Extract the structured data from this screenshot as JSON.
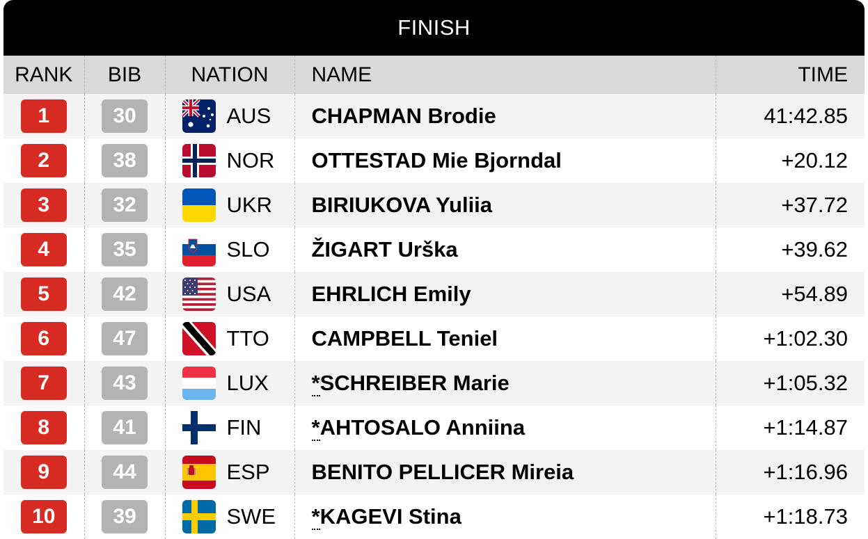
{
  "title": "FINISH",
  "headers": {
    "rank": "RANK",
    "bib": "BIB",
    "nation": "NATION",
    "name": "NAME",
    "time": "TIME"
  },
  "colors": {
    "rank_badge": "#d72b23",
    "bib_badge": "#b3b3b3",
    "header_bg": "#d9d9d9",
    "title_bg": "#000000"
  },
  "rows": [
    {
      "rank": "1",
      "bib": "30",
      "flag": "australia-flag-icon",
      "nation": "AUS",
      "star": "",
      "name": "CHAPMAN Brodie",
      "time": "41:42.85"
    },
    {
      "rank": "2",
      "bib": "38",
      "flag": "norway-flag-icon",
      "nation": "NOR",
      "star": "",
      "name": "OTTESTAD Mie Bjorndal",
      "time": "+20.12"
    },
    {
      "rank": "3",
      "bib": "32",
      "flag": "ukraine-flag-icon",
      "nation": "UKR",
      "star": "",
      "name": "BIRIUKOVA Yuliia",
      "time": "+37.72"
    },
    {
      "rank": "4",
      "bib": "35",
      "flag": "slovenia-flag-icon",
      "nation": "SLO",
      "star": "",
      "name": "ŽIGART Urška",
      "time": "+39.62"
    },
    {
      "rank": "5",
      "bib": "42",
      "flag": "usa-flag-icon",
      "nation": "USA",
      "star": "",
      "name": "EHRLICH Emily",
      "time": "+54.89"
    },
    {
      "rank": "6",
      "bib": "47",
      "flag": "trinidad-flag-icon",
      "nation": "TTO",
      "star": "",
      "name": "CAMPBELL Teniel",
      "time": "+1:02.30"
    },
    {
      "rank": "7",
      "bib": "43",
      "flag": "luxembourg-flag-icon",
      "nation": "LUX",
      "star": "*",
      "name": "SCHREIBER Marie",
      "time": "+1:05.32"
    },
    {
      "rank": "8",
      "bib": "41",
      "flag": "finland-flag-icon",
      "nation": "FIN",
      "star": "*",
      "name": "AHTOSALO Anniina",
      "time": "+1:14.87"
    },
    {
      "rank": "9",
      "bib": "44",
      "flag": "spain-flag-icon",
      "nation": "ESP",
      "star": "",
      "name": "BENITO PELLICER Mireia",
      "time": "+1:16.96"
    },
    {
      "rank": "10",
      "bib": "39",
      "flag": "sweden-flag-icon",
      "nation": "SWE",
      "star": "*",
      "name": "KAGEVI Stina",
      "time": "+1:18.73"
    }
  ]
}
